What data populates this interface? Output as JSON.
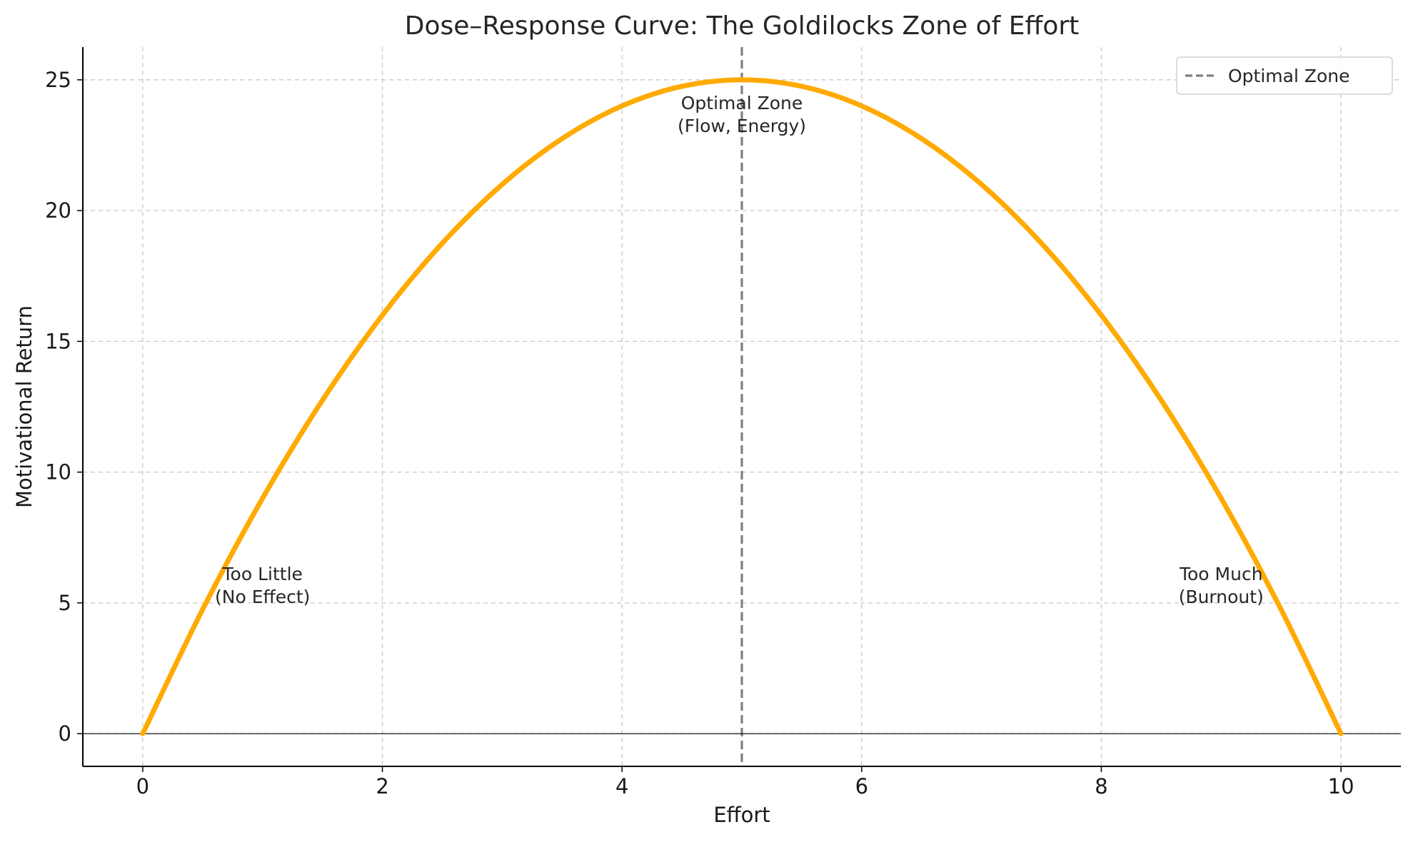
{
  "chart_data": {
    "type": "line",
    "title": "Dose–Response Curve: The Goldilocks Zone of Effort",
    "xlabel": "Effort",
    "ylabel": "Motivational Return",
    "xlim": [
      -0.5,
      10.5
    ],
    "ylim": [
      -1.25,
      26.25
    ],
    "xticks": [
      0,
      2,
      4,
      6,
      8,
      10
    ],
    "yticks": [
      0,
      5,
      10,
      15,
      20,
      25
    ],
    "grid": true,
    "legend_position": "top-right",
    "series": [
      {
        "x": [
          0,
          0.5,
          1,
          1.5,
          2,
          2.5,
          3,
          3.5,
          4,
          4.5,
          5,
          5.5,
          6,
          6.5,
          7,
          7.5,
          8,
          8.5,
          9,
          9.5,
          10
        ],
        "values": [
          0,
          4.75,
          9,
          12.75,
          16,
          18.75,
          21,
          22.75,
          24,
          24.75,
          25,
          24.75,
          24,
          22.75,
          21,
          18.75,
          16,
          12.75,
          9,
          4.75,
          0
        ],
        "color": "#FFAA00",
        "style": "solid"
      }
    ],
    "reference_lines": [
      {
        "orientation": "vertical",
        "x": 5,
        "name": "Optimal Zone",
        "style": "dashed",
        "color": "#7f7f7f"
      },
      {
        "orientation": "horizontal",
        "y": 0,
        "style": "solid",
        "color": "#000000"
      }
    ],
    "annotations": [
      {
        "x": 1,
        "y": 5,
        "lines": [
          "Too Little",
          "(No Effect)"
        ]
      },
      {
        "x": 5,
        "y": 23,
        "lines": [
          "Optimal Zone",
          "(Flow, Energy)"
        ]
      },
      {
        "x": 9,
        "y": 5,
        "lines": [
          "Too Much",
          "(Burnout)"
        ]
      }
    ],
    "legend": [
      {
        "label": "Optimal Zone",
        "style": "dashed",
        "color": "#7f7f7f"
      }
    ]
  }
}
